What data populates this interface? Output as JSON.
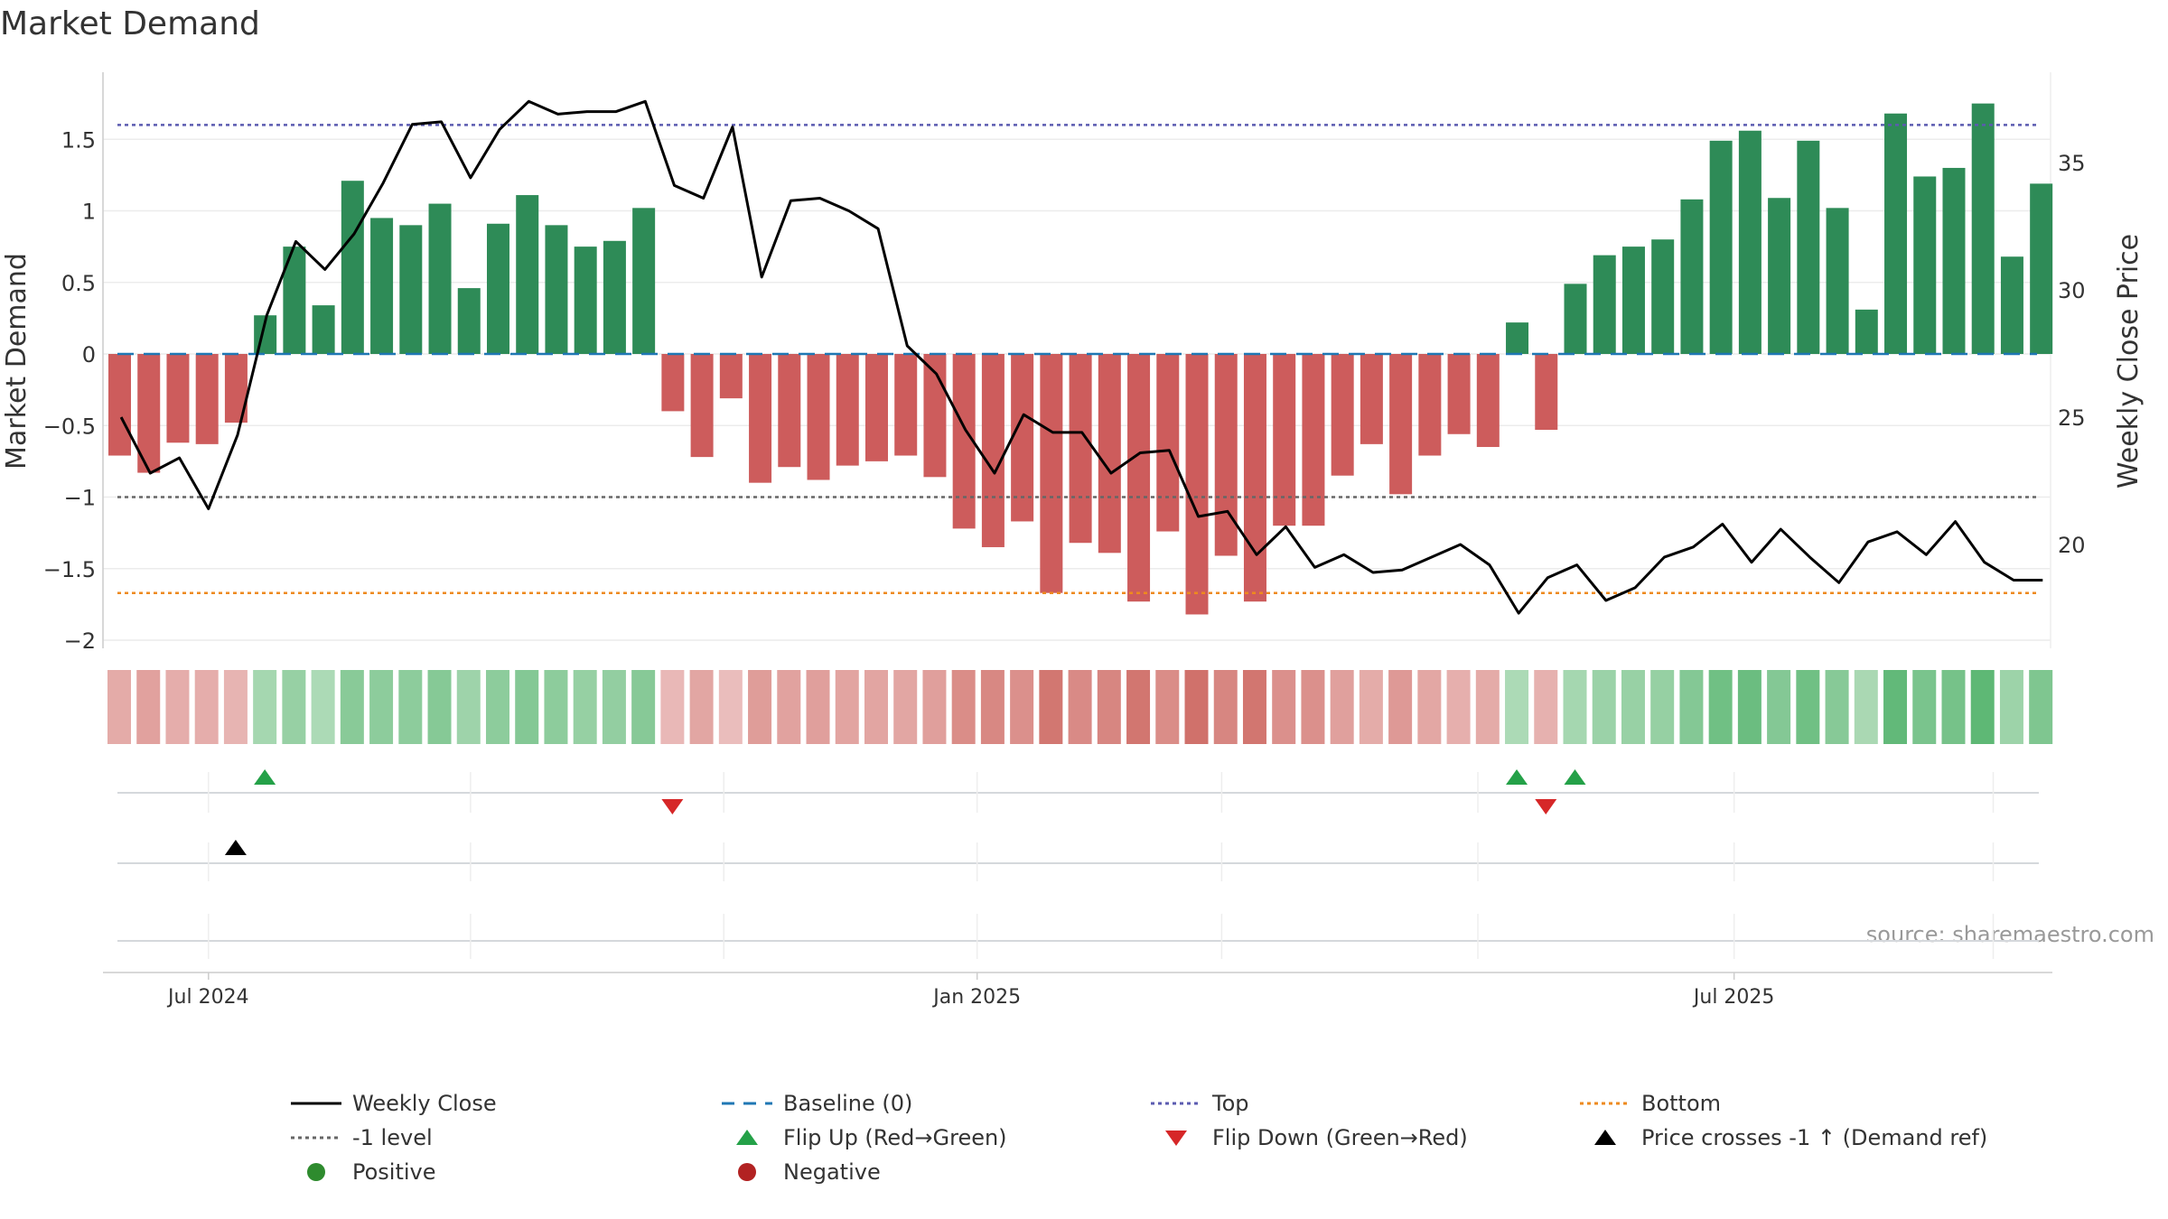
{
  "chart_data": {
    "type": "bar",
    "title": "Market Demand",
    "ylabel": "Market Demand",
    "y2label": "Weekly Close Price",
    "ylim": [
      -2.15,
      1.95
    ],
    "y2lim": [
      15.0,
      38.4
    ],
    "yticks": [
      1.5,
      1,
      0.5,
      0,
      -0.5,
      -1,
      -1.5,
      -2
    ],
    "ytick_labels": [
      "1.5",
      "1",
      "0.5",
      "0",
      "−0.5",
      "−1",
      "−1.5",
      "−2"
    ],
    "y2ticks": [
      35,
      30,
      25,
      20
    ],
    "y2tick_labels": [
      "35",
      "30",
      "25",
      "20"
    ],
    "xtick_labels": [
      "Jul 2024",
      "Jan 2025",
      "Jul 2025"
    ],
    "xtick_weeks": [
      3.5,
      29.9,
      55.9
    ],
    "reference_lines": {
      "top": 1.6,
      "baseline": 0,
      "minus_one": -1,
      "bottom": -1.67
    },
    "demand": [
      -0.71,
      -0.83,
      -0.62,
      -0.63,
      -0.48,
      0.27,
      0.75,
      0.34,
      1.21,
      0.95,
      0.9,
      1.05,
      0.46,
      0.91,
      1.11,
      0.9,
      0.75,
      0.79,
      1.02,
      -0.4,
      -0.72,
      -0.31,
      -0.9,
      -0.79,
      -0.88,
      -0.78,
      -0.75,
      -0.71,
      -0.86,
      -1.22,
      -1.35,
      -1.17,
      -1.67,
      -1.32,
      -1.39,
      -1.73,
      -1.24,
      -1.82,
      -1.41,
      -1.73,
      -1.2,
      -1.2,
      -0.85,
      -0.63,
      -0.98,
      -0.71,
      -0.56,
      -0.65,
      0.22,
      -0.53,
      0.49,
      0.69,
      0.75,
      0.8,
      1.08,
      1.49,
      1.56,
      1.09,
      1.49,
      1.02,
      0.31,
      1.68,
      1.24,
      1.3,
      1.75,
      0.68,
      1.19
    ],
    "price_weeks": [
      0.5,
      1.5,
      2.5,
      3.5,
      4.5,
      5.5,
      6.5,
      7.5,
      8.5,
      9.5,
      10.5,
      11.5,
      12.5,
      13.5,
      14.5,
      15.5,
      16.5,
      17.5,
      18.5,
      19.5,
      20.5,
      21.5,
      22.5,
      23.5,
      24.5,
      25.5,
      26.5,
      27.5,
      28.5,
      29.5,
      30.5,
      31.5,
      32.5,
      33.5,
      34.5,
      35.5,
      36.5,
      37.5,
      38.5,
      39.5,
      40.5,
      41.5,
      42.5,
      43.5,
      44.5,
      45.5,
      46.5,
      47.5,
      48.5,
      49.5,
      50.5,
      51.5,
      52.5,
      53.5,
      54.5,
      55.5,
      56.5,
      57.5,
      58.5,
      59.5,
      60.5,
      61.5,
      62.5,
      63.5,
      64.5,
      65.5,
      66.5
    ],
    "price": [
      25.0,
      22.8,
      23.4,
      21.4,
      24.3,
      29.0,
      31.9,
      30.8,
      32.2,
      34.2,
      36.5,
      36.6,
      34.4,
      36.3,
      37.4,
      36.9,
      37.0,
      37.0,
      37.4,
      34.1,
      33.6,
      36.4,
      30.5,
      33.5,
      33.6,
      33.1,
      32.4,
      27.8,
      26.7,
      24.5,
      22.8,
      25.1,
      24.4,
      24.4,
      22.8,
      23.6,
      23.7,
      21.1,
      21.3,
      19.6,
      20.7,
      19.1,
      19.6,
      18.9,
      19.0,
      19.5,
      20.0,
      19.2,
      17.3,
      18.7,
      19.2,
      17.8,
      18.3,
      19.5,
      19.9,
      20.8,
      19.3,
      20.6,
      19.5,
      18.5,
      20.1,
      20.5,
      19.6,
      20.9,
      19.3,
      18.6,
      18.6
    ],
    "strip_intensity": [
      -0.3,
      -0.38,
      -0.28,
      -0.28,
      -0.22,
      0.25,
      0.35,
      0.2,
      0.45,
      0.42,
      0.42,
      0.47,
      0.3,
      0.42,
      0.48,
      0.42,
      0.36,
      0.38,
      0.46,
      -0.18,
      -0.34,
      -0.14,
      -0.42,
      -0.37,
      -0.4,
      -0.36,
      -0.35,
      -0.34,
      -0.4,
      -0.56,
      -0.6,
      -0.53,
      -0.75,
      -0.58,
      -0.62,
      -0.76,
      -0.56,
      -0.8,
      -0.62,
      -0.76,
      -0.53,
      -0.53,
      -0.39,
      -0.29,
      -0.45,
      -0.33,
      -0.26,
      -0.3,
      0.2,
      -0.24,
      0.25,
      0.32,
      0.34,
      0.36,
      0.48,
      0.62,
      0.66,
      0.48,
      0.62,
      0.46,
      0.22,
      0.72,
      0.55,
      0.58,
      0.75,
      0.31,
      0.52
    ],
    "flip_up_weeks": [
      5,
      48,
      50
    ],
    "flip_down_weeks": [
      19,
      49
    ],
    "price_cross_weeks": [
      4
    ],
    "source": "source: sharemaestro.com",
    "colors": {
      "positive_bar": "#2e8b57",
      "negative_bar": "#cd5c5c",
      "price_line": "#000000",
      "baseline": "#1f77b4",
      "top": "#5b5bb0",
      "bottom": "#ee8a1e",
      "minus_one": "#666666",
      "flip_up": "#24a148",
      "flip_down": "#d62728",
      "cross": "#000000",
      "positive_dot": "#2e8b2e",
      "negative_dot": "#b22222"
    },
    "legend": [
      {
        "key": "weekly_close",
        "label": "Weekly Close",
        "symbol": "line-solid",
        "color": "#000000"
      },
      {
        "key": "baseline",
        "label": "Baseline (0)",
        "symbol": "line-dashed",
        "color": "#1f77b4"
      },
      {
        "key": "top",
        "label": "Top",
        "symbol": "line-dotted",
        "color": "#5b5bb0"
      },
      {
        "key": "bottom",
        "label": "Bottom",
        "symbol": "line-dotted",
        "color": "#ee8a1e"
      },
      {
        "key": "minus_one",
        "label": "-1 level",
        "symbol": "line-dotted",
        "color": "#666666"
      },
      {
        "key": "flip_up",
        "label": "Flip Up (Red→Green)",
        "symbol": "tri-up",
        "color": "#24a148"
      },
      {
        "key": "flip_down",
        "label": "Flip Down (Green→Red)",
        "symbol": "tri-down",
        "color": "#d62728"
      },
      {
        "key": "price_cross",
        "label": "Price crosses -1 ↑ (Demand ref)",
        "symbol": "tri-up",
        "color": "#000000"
      },
      {
        "key": "positive",
        "label": "Positive",
        "symbol": "dot",
        "color": "#2e8b2e"
      },
      {
        "key": "negative",
        "label": "Negative",
        "symbol": "dot",
        "color": "#b22222"
      }
    ]
  }
}
